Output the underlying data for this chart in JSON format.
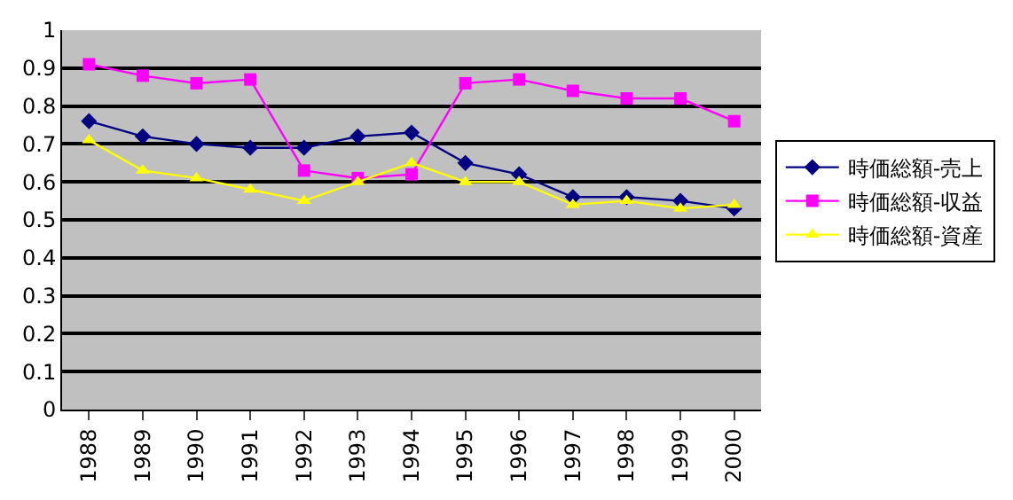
{
  "chart_data": {
    "type": "line",
    "categories": [
      "1988",
      "1989",
      "1990",
      "1991",
      "1992",
      "1993",
      "1994",
      "1995",
      "1996",
      "1997",
      "1998",
      "1999",
      "2000"
    ],
    "series": [
      {
        "name": "時価総額-売上",
        "color": "#000080",
        "marker": "diamond",
        "values": [
          0.76,
          0.72,
          0.7,
          0.69,
          0.69,
          0.72,
          0.73,
          0.65,
          0.62,
          0.56,
          0.56,
          0.55,
          0.53
        ]
      },
      {
        "name": "時価総額-収益",
        "color": "#ff00ff",
        "marker": "square",
        "values": [
          0.91,
          0.88,
          0.86,
          0.87,
          0.63,
          0.61,
          0.62,
          0.86,
          0.87,
          0.84,
          0.82,
          0.82,
          0.76
        ]
      },
      {
        "name": "時価総額-資産",
        "color": "#ffff00",
        "marker": "triangle",
        "values": [
          0.71,
          0.63,
          0.61,
          0.58,
          0.55,
          0.6,
          0.65,
          0.6,
          0.6,
          0.54,
          0.55,
          0.53,
          0.54
        ]
      }
    ],
    "ylim": [
      0,
      1
    ],
    "yticks": [
      0,
      0.1,
      0.2,
      0.3,
      0.4,
      0.5,
      0.6,
      0.7,
      0.8,
      0.9,
      1
    ],
    "grid": "y",
    "legend": "right"
  }
}
